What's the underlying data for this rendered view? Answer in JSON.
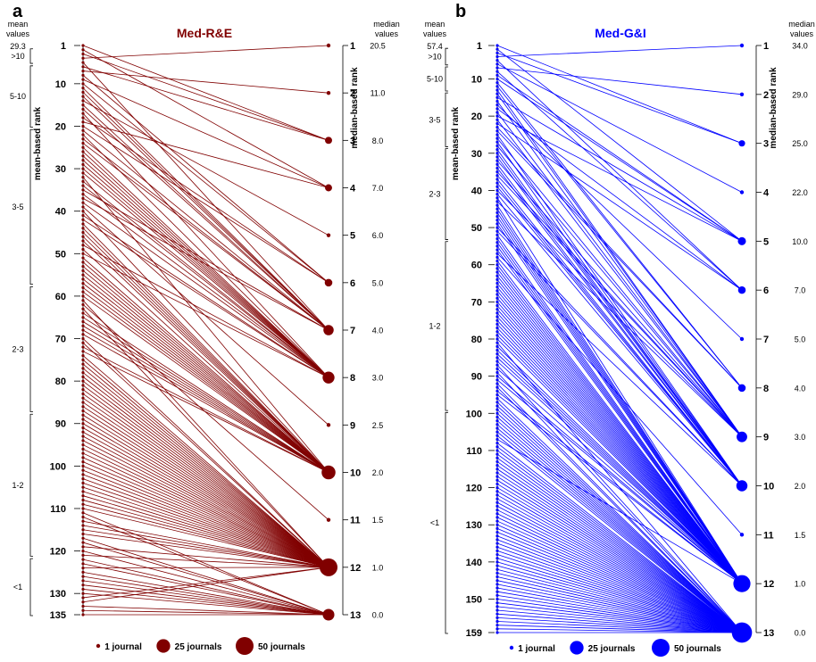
{
  "chart_data": [
    {
      "type": "bump",
      "panel_label": "a",
      "title": "Med-R&E",
      "color": "#800000",
      "left_axis": {
        "label": "mean-based rank",
        "range": [
          1,
          135
        ],
        "ticks": [
          "1",
          "10",
          "20",
          "30",
          "40",
          "50",
          "60",
          "70",
          "80",
          "90",
          "100",
          "110",
          "120",
          "130",
          "135"
        ],
        "values_header": [
          "mean",
          "values"
        ],
        "top_value": "29.3",
        "brackets": [
          {
            "label": ">10",
            "from": 2,
            "to": 5
          },
          {
            "label": "5-10",
            "from": 6,
            "to": 20
          },
          {
            "label": "3-5",
            "from": 21,
            "to": 57
          },
          {
            "label": "2-3",
            "from": 58,
            "to": 87
          },
          {
            "label": "1-2",
            "from": 88,
            "to": 121
          },
          {
            "label": "<1",
            "from": 122,
            "to": 135
          }
        ]
      },
      "right_axis": {
        "label": "median-based rank",
        "values_header": [
          "median",
          "values"
        ],
        "ranks": [
          {
            "rank": "1",
            "median": "20.5",
            "journals": 1
          },
          {
            "rank": "2",
            "median": "11.0",
            "journals": 1
          },
          {
            "rank": "3",
            "median": "8.0",
            "journals": 3
          },
          {
            "rank": "4",
            "median": "7.0",
            "journals": 3
          },
          {
            "rank": "5",
            "median": "6.0",
            "journals": 1
          },
          {
            "rank": "6",
            "median": "5.0",
            "journals": 4
          },
          {
            "rank": "7",
            "median": "4.0",
            "journals": 11
          },
          {
            "rank": "8",
            "median": "3.0",
            "journals": 17
          },
          {
            "rank": "9",
            "median": "2.5",
            "journals": 1
          },
          {
            "rank": "10",
            "median": "2.0",
            "journals": 26
          },
          {
            "rank": "11",
            "median": "1.5",
            "journals": 1
          },
          {
            "rank": "12",
            "median": "1.0",
            "journals": 50
          },
          {
            "rank": "13",
            "median": "0.0",
            "journals": 16
          }
        ]
      },
      "legend": [
        {
          "label": "1 journal",
          "journals": 1
        },
        {
          "label": "25 journals",
          "journals": 25
        },
        {
          "label": "50 journals",
          "journals": 50
        }
      ]
    },
    {
      "type": "bump",
      "panel_label": "b",
      "title": "Med-G&I",
      "color": "#0000ff",
      "left_axis": {
        "label": "mean-based rank",
        "range": [
          1,
          159
        ],
        "ticks": [
          "1",
          "10",
          "20",
          "30",
          "40",
          "50",
          "60",
          "70",
          "80",
          "90",
          "100",
          "110",
          "120",
          "130",
          "140",
          "150",
          "159"
        ],
        "values_header": [
          "mean",
          "values"
        ],
        "top_value": "57.4",
        "brackets": [
          {
            "label": ">10",
            "from": 2,
            "to": 6
          },
          {
            "label": "5-10",
            "from": 7,
            "to": 13
          },
          {
            "label": "3-5",
            "from": 14,
            "to": 28
          },
          {
            "label": "2-3",
            "from": 29,
            "to": 53
          },
          {
            "label": "1-2",
            "from": 54,
            "to": 99
          },
          {
            "label": "<1",
            "from": 100,
            "to": 159
          }
        ]
      },
      "right_axis": {
        "label": "median-based rank",
        "values_header": [
          "median",
          "values"
        ],
        "ranks": [
          {
            "rank": "1",
            "median": "34.0",
            "journals": 1
          },
          {
            "rank": "2",
            "median": "29.0",
            "journals": 1
          },
          {
            "rank": "3",
            "median": "25.0",
            "journals": 2
          },
          {
            "rank": "4",
            "median": "22.0",
            "journals": 1
          },
          {
            "rank": "5",
            "median": "10.0",
            "journals": 5
          },
          {
            "rank": "6",
            "median": "7.0",
            "journals": 4
          },
          {
            "rank": "7",
            "median": "5.0",
            "journals": 1
          },
          {
            "rank": "8",
            "median": "4.0",
            "journals": 4
          },
          {
            "rank": "9",
            "median": "3.0",
            "journals": 12
          },
          {
            "rank": "10",
            "median": "2.0",
            "journals": 14
          },
          {
            "rank": "11",
            "median": "1.5",
            "journals": 1
          },
          {
            "rank": "12",
            "median": "1.0",
            "journals": 45
          },
          {
            "rank": "13",
            "median": "0.0",
            "journals": 68
          }
        ]
      },
      "legend": [
        {
          "label": "1 journal",
          "journals": 1
        },
        {
          "label": "25 journals",
          "journals": 25
        },
        {
          "label": "50 journals",
          "journals": 50
        }
      ]
    }
  ]
}
